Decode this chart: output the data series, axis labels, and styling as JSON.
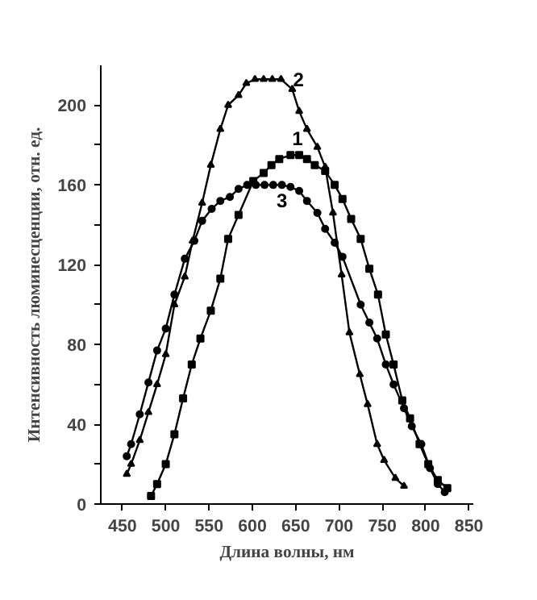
{
  "chart_data": {
    "type": "line",
    "xlabel": "Длина волны, нм",
    "ylabel": "Интенсивность люминесценции, отн. ед.",
    "xlim": [
      425,
      855
    ],
    "ylim": [
      0,
      220
    ],
    "xticks": [
      450,
      500,
      550,
      600,
      650,
      700,
      750,
      800,
      850
    ],
    "yticks": [
      0,
      {
        "value": 20,
        "label": null
      },
      40,
      {
        "value": 60,
        "label": null
      },
      80,
      {
        "value": 100,
        "label": null
      },
      120,
      {
        "value": 140,
        "label": null
      },
      160,
      {
        "value": 180,
        "label": null
      },
      200
    ],
    "grid": false,
    "line_style": "solid",
    "series": [
      {
        "name": "1",
        "color": "#000000",
        "marker": "square",
        "x": [
          483,
          490,
          500,
          510,
          520,
          530,
          540,
          552,
          563,
          572,
          584,
          601,
          613,
          622,
          631,
          644,
          654,
          663,
          672,
          684,
          695,
          704,
          714,
          725,
          735,
          745,
          754,
          763,
          773,
          782,
          793,
          803,
          814,
          825
        ],
        "values": [
          4,
          10,
          20,
          35,
          53,
          70,
          83,
          97,
          113,
          133,
          145,
          162,
          166,
          170,
          173,
          175,
          175,
          173,
          170,
          167,
          160,
          153,
          143,
          133,
          118,
          105,
          85,
          70,
          52,
          43,
          30,
          20,
          12,
          8
        ]
      },
      {
        "name": "2",
        "color": "#000000",
        "marker": "triangle",
        "x": [
          455,
          460,
          470,
          480,
          490,
          500,
          510,
          522,
          531,
          542,
          552,
          563,
          572,
          584,
          593,
          603,
          613,
          623,
          633,
          646,
          654,
          663,
          675,
          684,
          693,
          703,
          712,
          724,
          733,
          744,
          752,
          765,
          775
        ],
        "values": [
          15,
          20,
          32,
          46,
          60,
          75,
          100,
          114,
          132,
          151,
          170,
          188,
          200,
          205,
          211,
          213,
          213,
          213,
          213,
          208,
          197,
          188,
          179,
          169,
          146,
          115,
          86,
          65,
          50,
          30,
          22,
          13,
          9
        ]
      },
      {
        "name": "3",
        "color": "#000000",
        "marker": "circle",
        "x": [
          455,
          460,
          470,
          480,
          490,
          500,
          510,
          522,
          533,
          542,
          553,
          563,
          574,
          584,
          594,
          604,
          614,
          624,
          634,
          644,
          654,
          663,
          675,
          684,
          695,
          704,
          725,
          735,
          744,
          754,
          763,
          775,
          784,
          795,
          805,
          814,
          822
        ],
        "values": [
          24,
          30,
          45,
          61,
          77,
          88,
          105,
          123,
          132,
          142,
          148,
          152,
          154,
          158,
          160,
          160,
          160,
          160,
          160,
          159,
          157,
          152,
          146,
          138,
          131,
          124,
          100,
          91,
          83,
          70,
          60,
          48,
          39,
          30,
          18,
          10,
          6
        ]
      }
    ]
  }
}
